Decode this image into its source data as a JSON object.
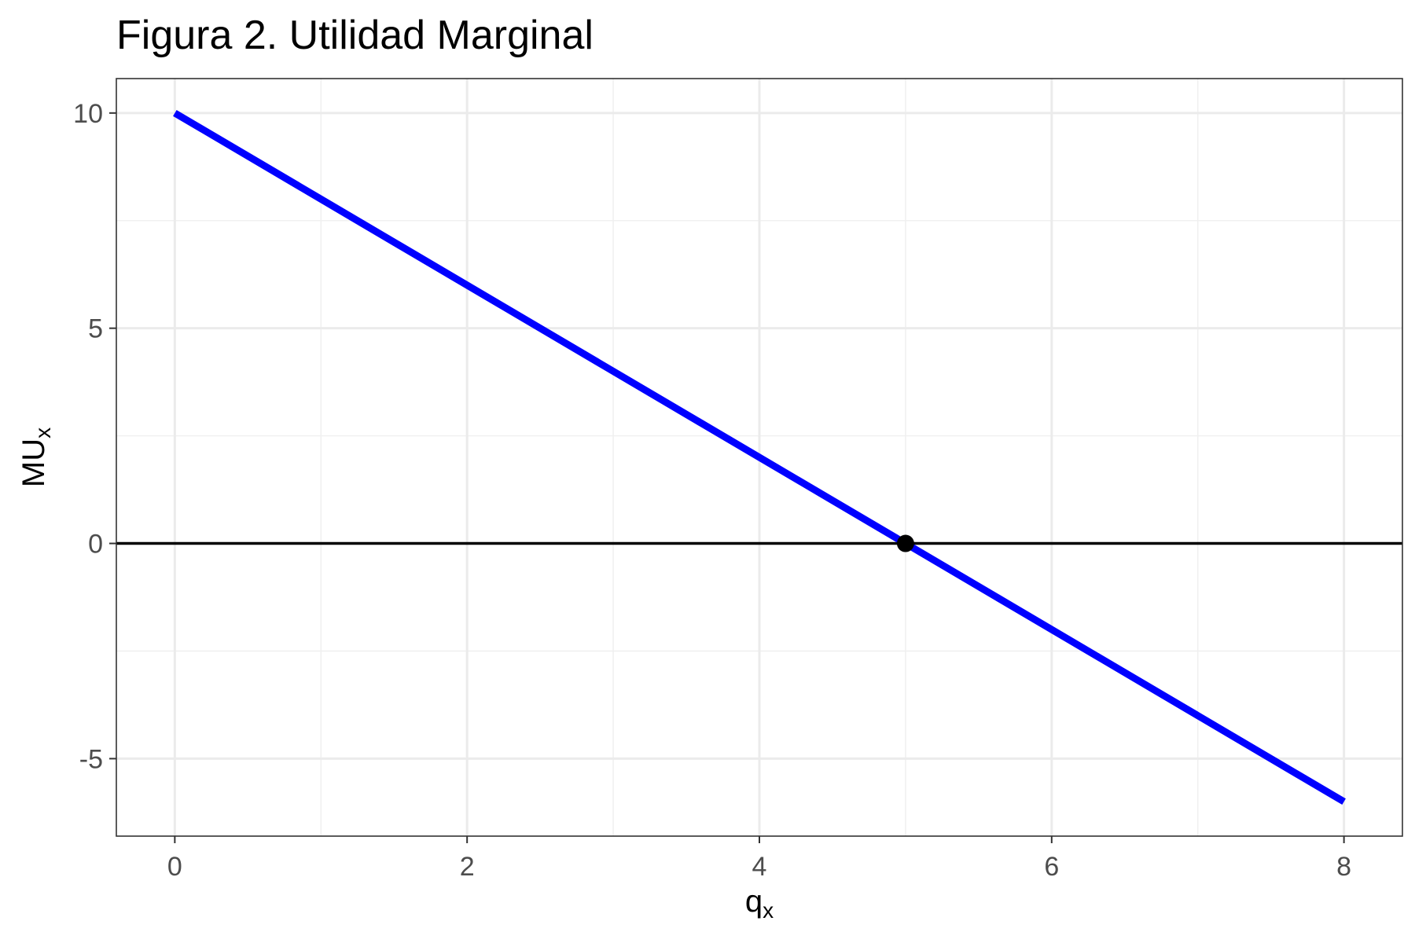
{
  "chart_data": {
    "type": "line",
    "title": "Figura 2. Utilidad Marginal",
    "xlabel": "q",
    "xlabel_sub": "x",
    "ylabel": "MU",
    "ylabel_sub": "x",
    "xlim": [
      -0.4,
      8.4
    ],
    "ylim": [
      -6.8,
      10.8
    ],
    "x_ticks": [
      0,
      2,
      4,
      6,
      8
    ],
    "x_tick_labels": [
      "0",
      "2",
      "4",
      "6",
      "8"
    ],
    "y_ticks": [
      -5,
      0,
      5,
      10
    ],
    "y_tick_labels": [
      "-5",
      "0",
      "5",
      "10"
    ],
    "grid": true,
    "series": [
      {
        "color": "#0000ff",
        "x": [
          0,
          8
        ],
        "y": [
          10,
          -6
        ]
      }
    ],
    "reference_lines": [
      {
        "orientation": "horizontal",
        "y": 0,
        "color": "#000000"
      }
    ],
    "points": [
      {
        "x": 5,
        "y": 0,
        "color": "#000000"
      }
    ]
  }
}
